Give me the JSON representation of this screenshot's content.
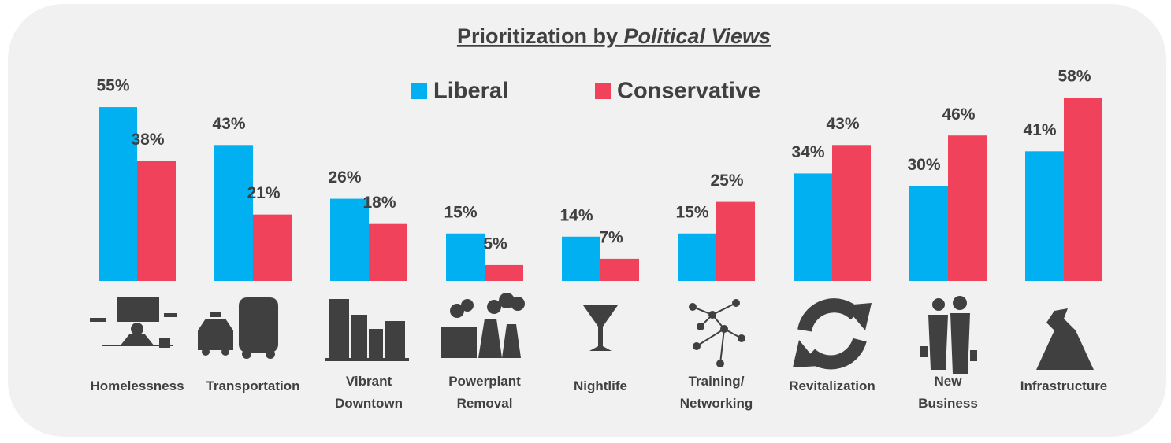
{
  "chart_data": {
    "type": "bar",
    "title": "Prioritization by",
    "title_italic": "Political Views",
    "categories": [
      "Homelessness",
      "Transportation",
      "Vibrant Downtown",
      "Powerplant Removal",
      "Nightlife",
      "Training/ Networking",
      "Revitalization",
      "New Business",
      "Infrastructure"
    ],
    "series": [
      {
        "name": "Liberal",
        "color": "#00b0f0",
        "values": [
          55,
          43,
          26,
          15,
          14,
          15,
          34,
          30,
          41
        ],
        "value_labels": [
          "55%",
          "43%",
          "26%",
          "15%",
          "14%",
          "15%",
          "34%",
          "30%",
          "41%"
        ]
      },
      {
        "name": "Conservative",
        "color": "#f0425a",
        "values": [
          38,
          21,
          18,
          5,
          7,
          25,
          43,
          46,
          58
        ],
        "value_labels": [
          "38%",
          "21%",
          "18%",
          "5%",
          "7%",
          "25%",
          "43%",
          "46%",
          "58%"
        ]
      }
    ],
    "ylim": [
      0,
      60
    ]
  }
}
